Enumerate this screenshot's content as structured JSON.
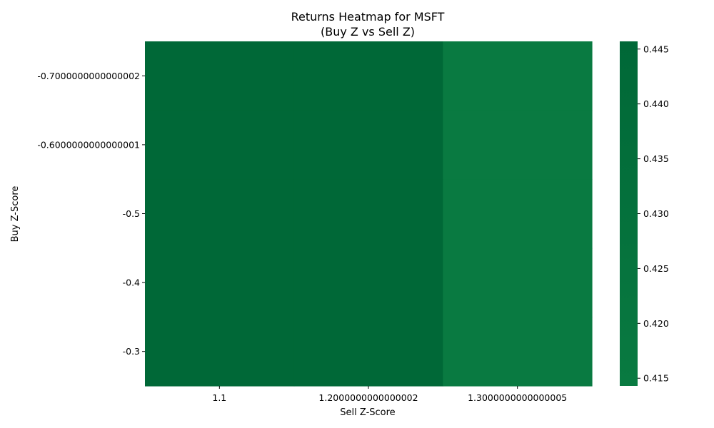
{
  "chart_data": {
    "type": "heatmap",
    "title": "Returns Heatmap for MSFT",
    "subtitle": "(Buy Z vs Sell Z)",
    "xlabel": "Sell Z-Score",
    "ylabel": "Buy Z-Score",
    "x_categories": [
      "1.1",
      "1.2000000000000002",
      "1.3000000000000005"
    ],
    "y_categories": [
      "-0.7000000000000002",
      "-0.6000000000000001",
      "-0.5",
      "-0.4",
      "-0.3"
    ],
    "values": [
      [
        0.4457,
        0.4457,
        0.4143
      ],
      [
        0.4457,
        0.4457,
        0.4143
      ],
      [
        0.4457,
        0.4457,
        0.4143
      ],
      [
        0.4457,
        0.4457,
        0.4143
      ],
      [
        0.4457,
        0.4457,
        0.4143
      ]
    ],
    "colorbar": {
      "min": 0.4143,
      "max": 0.4457,
      "ticks": [
        "0.415",
        "0.420",
        "0.425",
        "0.430",
        "0.435",
        "0.440",
        "0.445"
      ],
      "color_low": "#097a41",
      "color_high": "#006837"
    }
  }
}
